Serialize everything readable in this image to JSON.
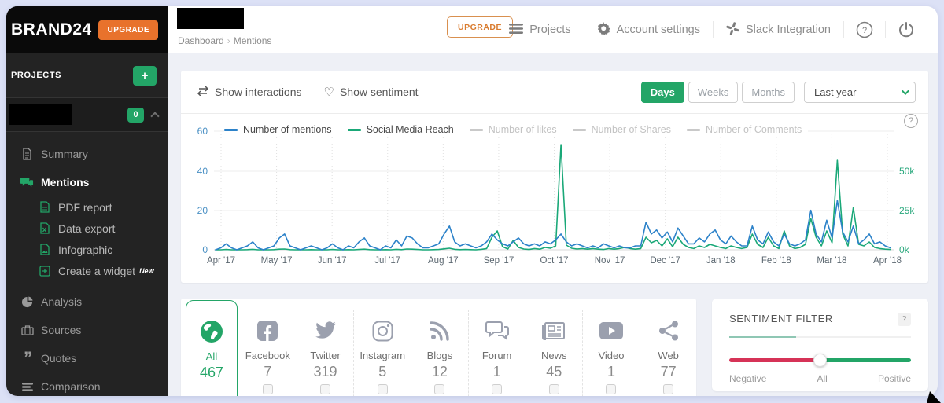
{
  "colors": {
    "accent_green": "#23a567",
    "accent_orange": "#e8722c",
    "chart_blue": "#2c82c9",
    "chart_green": "#1aa878",
    "muted_legend": "#c9c9c9",
    "slider_red": "#d63357"
  },
  "sidebar": {
    "logo": "BRAND24",
    "upgrade_label": "UPGRADE",
    "projects_label": "PROJECTS",
    "add_project_label": "+",
    "project_badge": "0",
    "items": [
      {
        "label": "Summary"
      },
      {
        "label": "Mentions"
      },
      {
        "label": "PDF report"
      },
      {
        "label": "Data export"
      },
      {
        "label": "Infographic"
      },
      {
        "label": "Create a widget",
        "badge": "New"
      },
      {
        "label": "Analysis"
      },
      {
        "label": "Sources"
      },
      {
        "label": "Quotes"
      },
      {
        "label": "Comparison"
      }
    ]
  },
  "topbar": {
    "breadcrumb": {
      "parent": "Dashboard",
      "separator": "›",
      "current": "Mentions"
    },
    "upgrade_label": "UPGRADE",
    "nav": [
      {
        "label": "Projects"
      },
      {
        "label": "Account settings"
      },
      {
        "label": "Slack Integration"
      }
    ],
    "help_label": "?"
  },
  "chart_card": {
    "show_interactions": "Show interactions",
    "show_sentiment": "Show sentiment",
    "range_buttons": [
      {
        "label": "Days",
        "active": true
      },
      {
        "label": "Weeks",
        "active": false
      },
      {
        "label": "Months",
        "active": false
      }
    ],
    "period_select": "Last year",
    "help_label": "?"
  },
  "chart_data": {
    "type": "line",
    "x_tick_labels": [
      "Apr '17",
      "May '17",
      "Jun '17",
      "Jul '17",
      "Aug '17",
      "Sep '17",
      "Oct '17",
      "Nov '17",
      "Dec '17",
      "Jan '18",
      "Feb '18",
      "Mar '18",
      "Apr '18"
    ],
    "left_axis": {
      "ticks": [
        "60",
        "40",
        "20",
        "0"
      ],
      "ylim": [
        0,
        60
      ]
    },
    "right_axis": {
      "ticks": [
        "50k",
        "25k",
        "0k"
      ],
      "ylim_k": [
        0,
        75.5
      ]
    },
    "grid": true,
    "legend_position": "top",
    "series": [
      {
        "name": "Number of mentions",
        "axis": "left",
        "color": "#2c82c9",
        "disabled": false,
        "values": [
          0,
          1,
          3,
          1,
          0,
          1,
          2,
          4,
          1,
          0,
          1,
          2,
          6,
          8,
          2,
          1,
          0,
          1,
          2,
          1,
          0,
          1,
          3,
          1,
          0,
          2,
          1,
          4,
          6,
          2,
          1,
          0,
          2,
          1,
          5,
          2,
          7,
          6,
          3,
          1,
          1,
          2,
          3,
          8,
          12,
          4,
          2,
          3,
          2,
          1,
          2,
          4,
          8,
          5,
          3,
          2,
          4,
          6,
          3,
          2,
          3,
          2,
          4,
          3,
          5,
          8,
          4,
          2,
          3,
          2,
          1,
          2,
          1,
          3,
          2,
          1,
          2,
          1,
          1,
          2,
          2,
          14,
          8,
          10,
          6,
          9,
          4,
          11,
          7,
          3,
          3,
          6,
          4,
          8,
          10,
          5,
          3,
          7,
          4,
          2,
          2,
          12,
          5,
          3,
          9,
          4,
          2,
          8,
          3,
          2,
          3,
          5,
          20,
          8,
          4,
          15,
          6,
          25,
          9,
          4,
          12,
          3,
          5,
          8,
          3,
          4,
          2,
          1
        ]
      },
      {
        "name": "Social Media Reach",
        "axis": "right",
        "color": "#1aa878",
        "disabled": false,
        "values_k": [
          0,
          0,
          0.2,
          0,
          0,
          0,
          0.1,
          0.3,
          0,
          0,
          0,
          0.1,
          0.4,
          0.5,
          0.1,
          0,
          0,
          0,
          0.1,
          0,
          0,
          0,
          0.2,
          0,
          0,
          0.1,
          0,
          0.2,
          0.4,
          0.1,
          0,
          0,
          0.1,
          0,
          0.3,
          0.1,
          0.5,
          0.4,
          0.2,
          0,
          0,
          0.1,
          0.2,
          0.6,
          1,
          0.3,
          0.1,
          0.2,
          0.1,
          0,
          0.3,
          0.8,
          8,
          12,
          2,
          0.5,
          6,
          1.5,
          0.5,
          0.2,
          0.8,
          0.4,
          1.5,
          1,
          2.5,
          67,
          3,
          1,
          0.5,
          0.8,
          0.4,
          0.8,
          0.4,
          0.2,
          0.8,
          0.4,
          0.8,
          1.5,
          0.8,
          0.4,
          0.8,
          8,
          4.5,
          6,
          2.5,
          7,
          2,
          8,
          3.5,
          1.5,
          0.8,
          2.5,
          1.5,
          3.5,
          2.5,
          1.5,
          0.8,
          2.5,
          1.5,
          0.8,
          1.5,
          10,
          3.5,
          1.5,
          8,
          2.5,
          0.8,
          12,
          2.5,
          0.8,
          1.5,
          3.5,
          20,
          8,
          2.5,
          12,
          4.5,
          57,
          10,
          2.5,
          27,
          3.5,
          2.5,
          5,
          1.5,
          0.8,
          0.4,
          0.2
        ]
      },
      {
        "name": "Number of likes",
        "axis": "left",
        "color": "#c9c9c9",
        "disabled": true,
        "values": []
      },
      {
        "name": "Number of Shares",
        "axis": "left",
        "color": "#c9c9c9",
        "disabled": true,
        "values": []
      },
      {
        "name": "Number of Comments",
        "axis": "left",
        "color": "#c9c9c9",
        "disabled": true,
        "values": []
      }
    ]
  },
  "sources": {
    "items": [
      {
        "label": "All",
        "count": "467",
        "active": true
      },
      {
        "label": "Facebook",
        "count": "7"
      },
      {
        "label": "Twitter",
        "count": "319"
      },
      {
        "label": "Instagram",
        "count": "5"
      },
      {
        "label": "Blogs",
        "count": "12"
      },
      {
        "label": "Forum",
        "count": "1"
      },
      {
        "label": "News",
        "count": "45"
      },
      {
        "label": "Video",
        "count": "1"
      },
      {
        "label": "Web",
        "count": "77"
      }
    ]
  },
  "sentiment": {
    "title": "SENTIMENT FILTER",
    "help_label": "?",
    "labels": {
      "left": "Negative",
      "middle": "All",
      "right": "Positive"
    },
    "slider_value": "All"
  }
}
